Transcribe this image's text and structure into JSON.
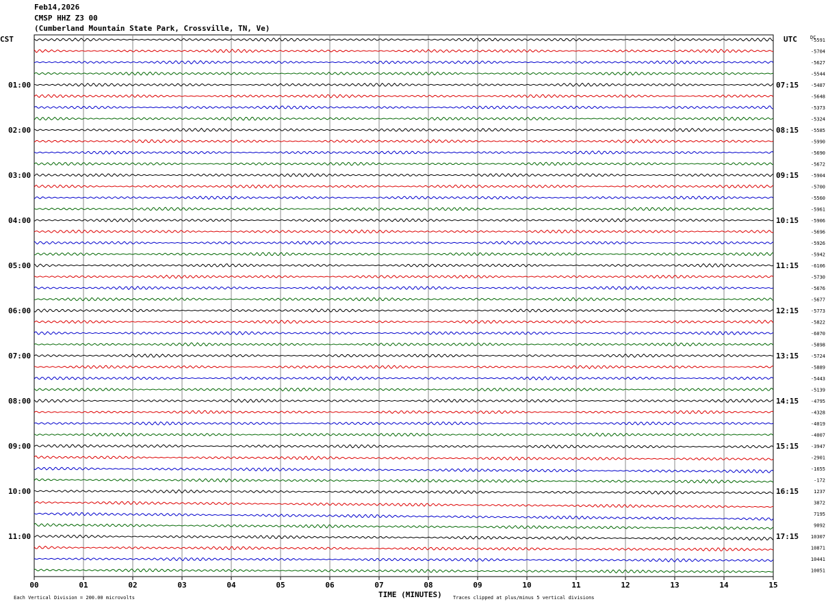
{
  "header": {
    "date": "Feb14,2026",
    "station": "CMSP HHZ Z3 00",
    "location": "(Cumberland Mountain State Park, Crossville, TN, Ve)"
  },
  "footer": {
    "scale_note": "Each Vertical Division =  200.00 microvolts",
    "xlabel": "TIME (MINUTES)",
    "clip_note": "Traces clipped at plus/minus 5 vertical divisions"
  },
  "chart_data": {
    "type": "line",
    "title": "CMSP HHZ Z3 00",
    "xlabel": "TIME (MINUTES)",
    "ylabel": "",
    "left_axis_label": "CST",
    "right_axis_label": "UTC",
    "dc_label": "DC",
    "x_ticks": [
      "00",
      "01",
      "02",
      "03",
      "04",
      "05",
      "06",
      "07",
      "08",
      "09",
      "10",
      "11",
      "12",
      "13",
      "14",
      "15"
    ],
    "xlim": [
      0,
      15
    ],
    "left_time_labels": [
      "01:00",
      "02:00",
      "03:00",
      "04:00",
      "05:00",
      "06:00",
      "07:00",
      "08:00",
      "09:00",
      "10:00",
      "11:00"
    ],
    "right_time_labels": [
      "07:15",
      "08:15",
      "09:15",
      "10:15",
      "11:15",
      "12:15",
      "13:15",
      "14:15",
      "15:15",
      "16:15",
      "17:15"
    ],
    "trace_colors": [
      "#000000",
      "#dd0000",
      "#0000cc",
      "#006600"
    ],
    "dc_offsets": [
      "-5591",
      "-5704",
      "-5627",
      "-5544",
      "-5487",
      "-5648",
      "-5373",
      "-5324",
      "-5585",
      "-5990",
      "-5690",
      "-5672",
      "-5904",
      "-5700",
      "-5560",
      "-5961",
      "-5906",
      "-5696",
      "-5926",
      "-5942",
      "-6106",
      "-5730",
      "-5676",
      "-5677",
      "-5773",
      "-5822",
      "-6070",
      "-5898",
      "-5724",
      "-5889",
      "-5443",
      "-5139",
      "-4795",
      "-4328",
      "-4019",
      "-4007",
      "-3947",
      "-2901",
      "-1655",
      "-172",
      "1237",
      "3872",
      "7195",
      "9092",
      "10307",
      "10871",
      "10441",
      "10051"
    ],
    "trace_drift_divisions": [
      0,
      0,
      0,
      0,
      0,
      0,
      0,
      0,
      0,
      0,
      0,
      0,
      0,
      0,
      0,
      0,
      0,
      0,
      0,
      0,
      0,
      0,
      0,
      0,
      0,
      0,
      0,
      0,
      0,
      0,
      0,
      0,
      0,
      0,
      0,
      0,
      0.4,
      0.9,
      1.4,
      0.9,
      0.8,
      2.2,
      2.6,
      1.6,
      1.2,
      1.0,
      0.8,
      0.8
    ],
    "grid": true
  }
}
